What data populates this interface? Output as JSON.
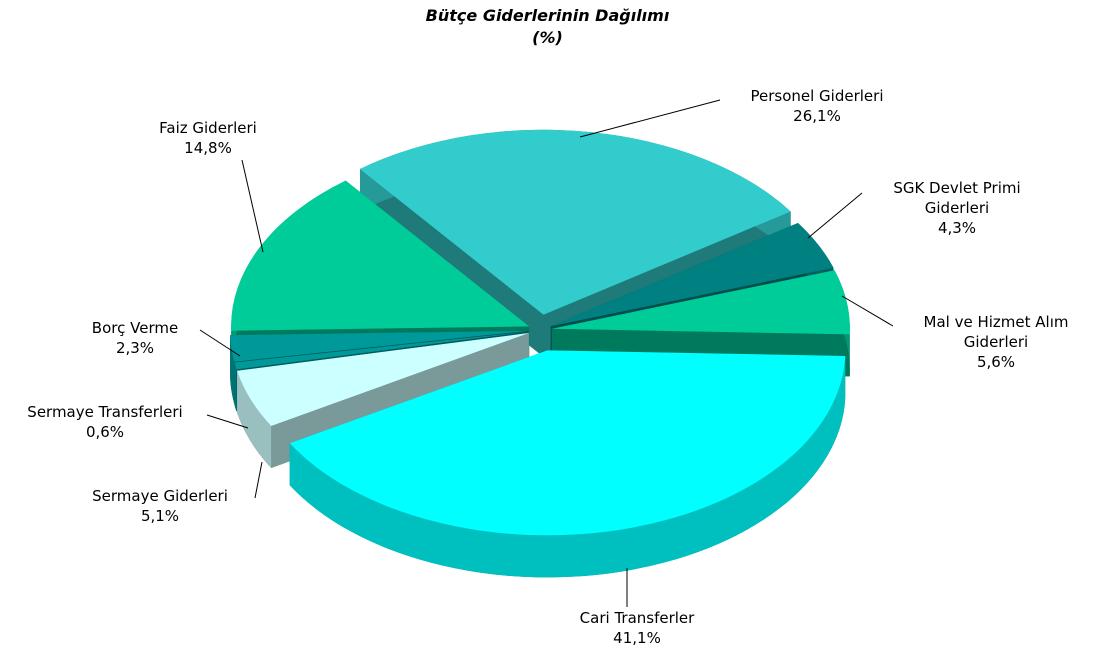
{
  "chart_data": {
    "type": "pie",
    "title": "Bütçe Giderlerinin Dağılımı",
    "subtitle": "(%)",
    "categories": [
      "Personel Giderleri",
      "SGK Devlet Primi Giderleri",
      "Mal ve Hizmet Alım Giderleri",
      "Cari Transferler",
      "Sermaye Giderleri",
      "Sermaye Transferleri",
      "Borç Verme",
      "Faiz Giderleri"
    ],
    "values": [
      26.1,
      4.3,
      5.6,
      41.1,
      5.1,
      0.6,
      2.3,
      14.8
    ],
    "value_labels": [
      "26,1%",
      "4,3%",
      "5,6%",
      "41,1%",
      "5,1%",
      "0,6%",
      "2,3%",
      "14,8%"
    ],
    "colors": [
      "#33cccc",
      "#008080",
      "#00cc99",
      "#00ffff",
      "#ccffff",
      "#009999",
      "#009999",
      "#00cc99"
    ]
  }
}
